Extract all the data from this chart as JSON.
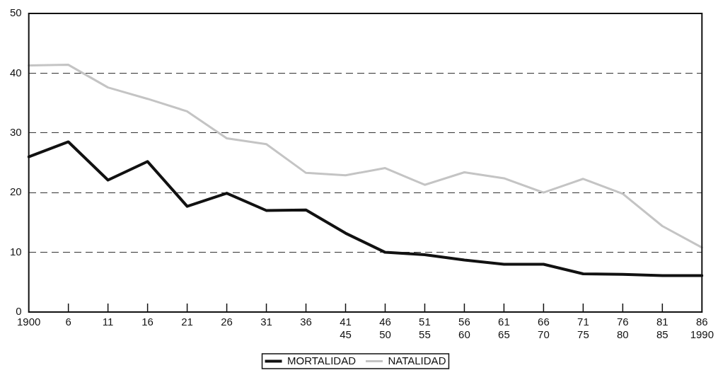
{
  "chart_data": {
    "type": "line",
    "categories": [
      "1900",
      "6",
      "11",
      "16",
      "21",
      "26",
      "31",
      "36",
      "41\n45",
      "46\n50",
      "51\n55",
      "56\n60",
      "61\n65",
      "66\n70",
      "71\n75",
      "76\n80",
      "81\n85",
      "86\n1990"
    ],
    "series": [
      {
        "name": "MORTALIDAD",
        "color": "#111111",
        "values": [
          26,
          28.5,
          22.1,
          25.2,
          17.7,
          19.9,
          17,
          17.1,
          13.2,
          10,
          9.6,
          8.7,
          8,
          8,
          6.4,
          6.3,
          6.1,
          6.1
        ]
      },
      {
        "name": "NATALIDAD",
        "color": "#c4c4c4",
        "values": [
          41.3,
          41.4,
          37.6,
          35.7,
          33.6,
          29.1,
          28.1,
          23.3,
          22.9,
          24.1,
          21.3,
          23.4,
          22.4,
          20,
          22.3,
          19.8,
          14.4,
          10.8
        ]
      }
    ],
    "ylim": [
      0,
      50
    ],
    "yticks": [
      0,
      10,
      20,
      30,
      40,
      50
    ],
    "grid": "y",
    "legend": "bottom",
    "marker": "none",
    "line_style": "solid"
  }
}
